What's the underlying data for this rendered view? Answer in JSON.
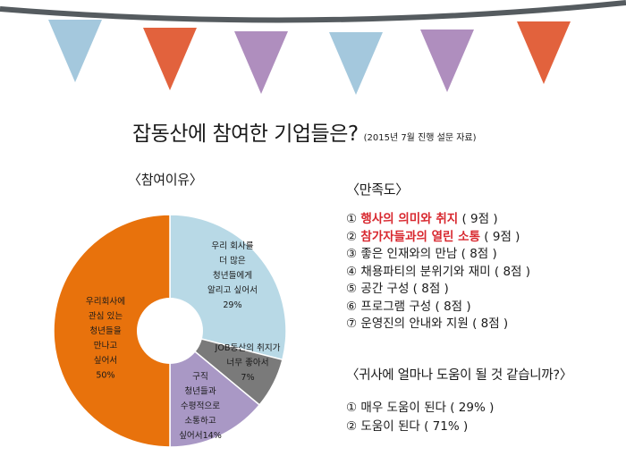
{
  "title": "잡동산에 참여한 기업들은?",
  "subtitle": "(2015년 7월 진행 설문 자료)",
  "chart_section_label": "〈참여이유〉",
  "bunting_colors": [
    "#9cc3da",
    "#e0552c",
    "#a884b8",
    "#9cc3da",
    "#a884b8",
    "#e0552c"
  ],
  "chart_data": {
    "type": "pie",
    "start_angle_deg": 0,
    "slices": [
      {
        "lines": [
          "우리 회사를",
          "더 많은",
          "청년들에게",
          "알리고 싶어서",
          "29%"
        ],
        "value": 29,
        "color": "#b8d9e6"
      },
      {
        "lines": [
          "JOB동산의 취지가",
          "너무 좋아서",
          "7%"
        ],
        "value": 7,
        "color": "#7a7a7a"
      },
      {
        "lines": [
          "구직",
          "청년들과",
          "수평적으로",
          "소통하고",
          "싶어서14%"
        ],
        "value": 14,
        "color": "#a998c5"
      },
      {
        "lines": [
          "우리회사에",
          "관심 있는",
          "청년들을",
          "만나고",
          "싶어서",
          "50%"
        ],
        "value": 50,
        "color": "#e8720c"
      }
    ]
  },
  "satisfaction": {
    "label": "〈만족도〉",
    "items": [
      {
        "num": "①",
        "text": "행사의 의미와 취지",
        "score": " ( 9점 )",
        "highlight": true
      },
      {
        "num": "②",
        "text": "참가자들과의 열린 소통",
        "score": " ( 9점 )",
        "highlight": true
      },
      {
        "num": "③",
        "text": "좋은 인재와의 만남",
        "score": " ( 8점 )",
        "highlight": false
      },
      {
        "num": "④",
        "text": "채용파티의 분위기와 재미",
        "score": " ( 8점 )",
        "highlight": false
      },
      {
        "num": "⑤",
        "text": "공간 구성",
        "score": " ( 8점 )",
        "highlight": false
      },
      {
        "num": "⑥",
        "text": "프로그램 구성",
        "score": " ( 8점 )",
        "highlight": false
      },
      {
        "num": "⑦",
        "text": "운영진의 안내와 지원",
        "score": " ( 8점 )",
        "highlight": false
      }
    ]
  },
  "help": {
    "label": "〈귀사에 얼마나 도움이 될 것 같습니까?〉",
    "items": [
      {
        "num": "①",
        "text": "매우 도움이 된다 ( 29% )"
      },
      {
        "num": "②",
        "text": "도움이 된다 ( 71% )"
      }
    ]
  }
}
